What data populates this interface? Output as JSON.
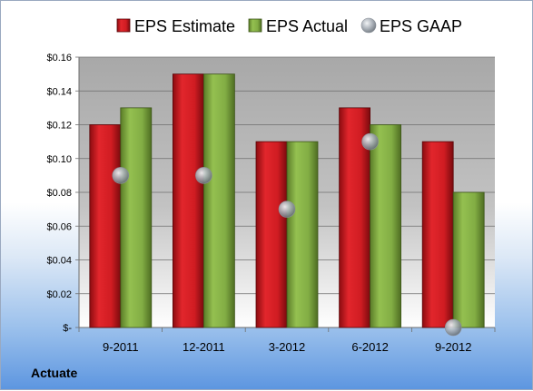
{
  "company": "Actuate",
  "chart_data": {
    "type": "bar",
    "categories": [
      "9-2011",
      "12-2011",
      "3-2012",
      "6-2012",
      "9-2012"
    ],
    "series": [
      {
        "name": "EPS Estimate",
        "kind": "bar",
        "color": "#c8161e",
        "values": [
          0.12,
          0.15,
          0.11,
          0.13,
          0.11
        ]
      },
      {
        "name": "EPS Actual",
        "kind": "bar",
        "color": "#7aa23c",
        "values": [
          0.13,
          0.15,
          0.11,
          0.12,
          0.08
        ]
      },
      {
        "name": "EPS GAAP",
        "kind": "marker",
        "color": "#9aa3ad",
        "values": [
          0.09,
          0.09,
          0.07,
          0.11,
          0.0
        ]
      }
    ],
    "ylim": [
      0,
      0.16
    ],
    "yticks": [
      {
        "value": 0,
        "label": "$-"
      },
      {
        "value": 0.02,
        "label": "$0.02"
      },
      {
        "value": 0.04,
        "label": "$0.04"
      },
      {
        "value": 0.06,
        "label": "$0.06"
      },
      {
        "value": 0.08,
        "label": "$0.08"
      },
      {
        "value": 0.1,
        "label": "$0.10"
      },
      {
        "value": 0.12,
        "label": "$0.12"
      },
      {
        "value": 0.14,
        "label": "$0.14"
      },
      {
        "value": 0.16,
        "label": "$0.16"
      }
    ],
    "grid": true,
    "legend_position": "top"
  }
}
